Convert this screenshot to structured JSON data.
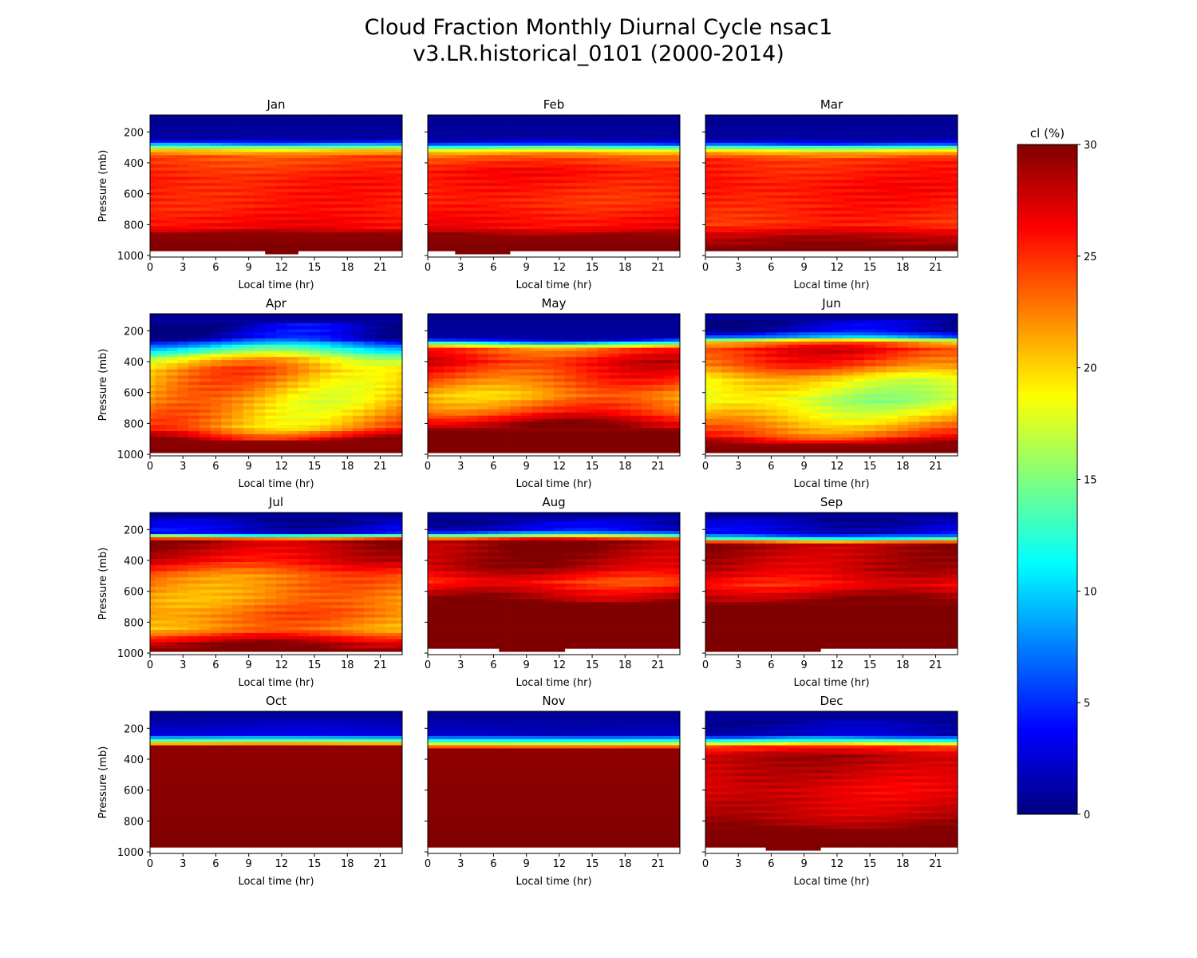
{
  "figure": {
    "title_line1": "Cloud Fraction Monthly Diurnal Cycle nsac1",
    "title_line2": "v3.LR.historical_0101 (2000-2014)"
  },
  "chart_data": {
    "type": "heatmap",
    "xlabel": "Local time (hr)",
    "ylabel": "Pressure (mb)",
    "x_ticks": [
      0,
      3,
      6,
      9,
      12,
      15,
      18,
      21
    ],
    "y_ticks": [
      200,
      400,
      600,
      800,
      1000
    ],
    "xlim": [
      0,
      23
    ],
    "ylim": [
      1010,
      90
    ],
    "grid": false,
    "colormap": "jet",
    "colorbar": {
      "label": "cl (%)",
      "min": 0,
      "max": 30,
      "ticks": [
        0,
        5,
        10,
        15,
        20,
        25,
        30
      ],
      "stops": [
        "#00007f",
        "#0000ff",
        "#007fff",
        "#00ffff",
        "#7fff7f",
        "#ffff00",
        "#ff7f00",
        "#ff0000",
        "#7f0000"
      ]
    },
    "panels": [
      {
        "month": "Jan",
        "profile": [
          [
            100,
            0.5
          ],
          [
            240,
            1
          ],
          [
            270,
            5
          ],
          [
            290,
            12
          ],
          [
            320,
            20
          ],
          [
            360,
            24
          ],
          [
            500,
            25.5
          ],
          [
            700,
            25.5
          ],
          [
            820,
            26.5
          ],
          [
            860,
            29.5
          ],
          [
            960,
            30
          ]
        ],
        "diurnal_amp": 0.5,
        "missing_below": 960,
        "missing_gap": [
          11,
          13
        ]
      },
      {
        "month": "Feb",
        "profile": [
          [
            100,
            0.5
          ],
          [
            250,
            1
          ],
          [
            280,
            6
          ],
          [
            300,
            13
          ],
          [
            330,
            21
          ],
          [
            370,
            24
          ],
          [
            450,
            26
          ],
          [
            650,
            25
          ],
          [
            820,
            26.5
          ],
          [
            870,
            29.5
          ],
          [
            960,
            30
          ]
        ],
        "diurnal_amp": 0.5,
        "missing_below": 960,
        "missing_gap": [
          3,
          7
        ]
      },
      {
        "month": "Mar",
        "profile": [
          [
            100,
            0.5
          ],
          [
            250,
            1
          ],
          [
            280,
            6
          ],
          [
            300,
            13
          ],
          [
            330,
            21
          ],
          [
            380,
            25
          ],
          [
            550,
            26
          ],
          [
            800,
            25
          ],
          [
            880,
            28.5
          ],
          [
            960,
            30
          ]
        ],
        "diurnal_amp": 0.5,
        "missing_below": 960,
        "missing_gap": null
      },
      {
        "month": "Apr",
        "profile": [
          [
            100,
            0.5
          ],
          [
            250,
            2
          ],
          [
            290,
            9
          ],
          [
            330,
            13
          ],
          [
            380,
            19
          ],
          [
            450,
            22
          ],
          [
            650,
            20.5
          ],
          [
            830,
            22
          ],
          [
            880,
            26
          ],
          [
            920,
            29.5
          ],
          [
            990,
            30
          ]
        ],
        "diurnal_amp": 3,
        "missing_below": 990,
        "missing_gap": null
      },
      {
        "month": "May",
        "profile": [
          [
            100,
            0.5
          ],
          [
            250,
            1
          ],
          [
            270,
            6
          ],
          [
            290,
            16
          ],
          [
            320,
            24
          ],
          [
            400,
            26.5
          ],
          [
            500,
            24.5
          ],
          [
            620,
            21.5
          ],
          [
            720,
            24
          ],
          [
            800,
            28.5
          ],
          [
            860,
            30
          ],
          [
            990,
            30
          ]
        ],
        "diurnal_amp": 2,
        "missing_below": 990,
        "missing_gap": null
      },
      {
        "month": "Jun",
        "profile": [
          [
            100,
            0.5
          ],
          [
            200,
            2
          ],
          [
            240,
            8
          ],
          [
            270,
            22
          ],
          [
            320,
            26
          ],
          [
            420,
            24
          ],
          [
            520,
            19
          ],
          [
            650,
            17
          ],
          [
            760,
            20
          ],
          [
            880,
            24
          ],
          [
            940,
            29.5
          ],
          [
            990,
            30
          ]
        ],
        "diurnal_amp": 2,
        "missing_below": 990,
        "missing_gap": null
      },
      {
        "month": "Jul",
        "profile": [
          [
            100,
            0.5
          ],
          [
            220,
            3
          ],
          [
            250,
            18
          ],
          [
            270,
            29
          ],
          [
            400,
            27
          ],
          [
            500,
            23
          ],
          [
            650,
            22
          ],
          [
            750,
            23
          ],
          [
            850,
            22
          ],
          [
            900,
            26
          ],
          [
            940,
            29
          ],
          [
            990,
            30
          ]
        ],
        "diurnal_amp": 1.5,
        "missing_below": 990,
        "missing_gap": null
      },
      {
        "month": "Aug",
        "profile": [
          [
            100,
            0.5
          ],
          [
            210,
            3
          ],
          [
            240,
            15
          ],
          [
            270,
            29.5
          ],
          [
            440,
            28.5
          ],
          [
            540,
            25
          ],
          [
            620,
            28
          ],
          [
            680,
            30
          ],
          [
            960,
            30
          ]
        ],
        "diurnal_amp": 1.5,
        "missing_below": 960,
        "missing_gap": [
          7,
          12
        ]
      },
      {
        "month": "Sep",
        "profile": [
          [
            100,
            0.5
          ],
          [
            230,
            3
          ],
          [
            270,
            16
          ],
          [
            290,
            29
          ],
          [
            460,
            28
          ],
          [
            560,
            26
          ],
          [
            640,
            29
          ],
          [
            700,
            30
          ],
          [
            960,
            30
          ]
        ],
        "diurnal_amp": 1.2,
        "missing_below": 960,
        "missing_gap": [
          0,
          10
        ]
      },
      {
        "month": "Oct",
        "profile": [
          [
            100,
            0.5
          ],
          [
            240,
            3
          ],
          [
            290,
            17
          ],
          [
            320,
            29.5
          ],
          [
            960,
            30
          ]
        ],
        "diurnal_amp": 0.3,
        "missing_below": 960,
        "missing_gap": null
      },
      {
        "month": "Nov",
        "profile": [
          [
            100,
            0.5
          ],
          [
            240,
            2
          ],
          [
            290,
            14
          ],
          [
            340,
            29.5
          ],
          [
            960,
            30
          ]
        ],
        "diurnal_amp": 0.2,
        "missing_below": 960,
        "missing_gap": null
      },
      {
        "month": "Dec",
        "profile": [
          [
            100,
            0.5
          ],
          [
            240,
            2
          ],
          [
            280,
            12
          ],
          [
            320,
            25
          ],
          [
            380,
            28.5
          ],
          [
            600,
            27
          ],
          [
            760,
            28
          ],
          [
            860,
            29.8
          ],
          [
            960,
            30
          ]
        ],
        "diurnal_amp": 0.8,
        "missing_below": 960,
        "missing_gap": [
          6,
          10
        ]
      }
    ]
  }
}
